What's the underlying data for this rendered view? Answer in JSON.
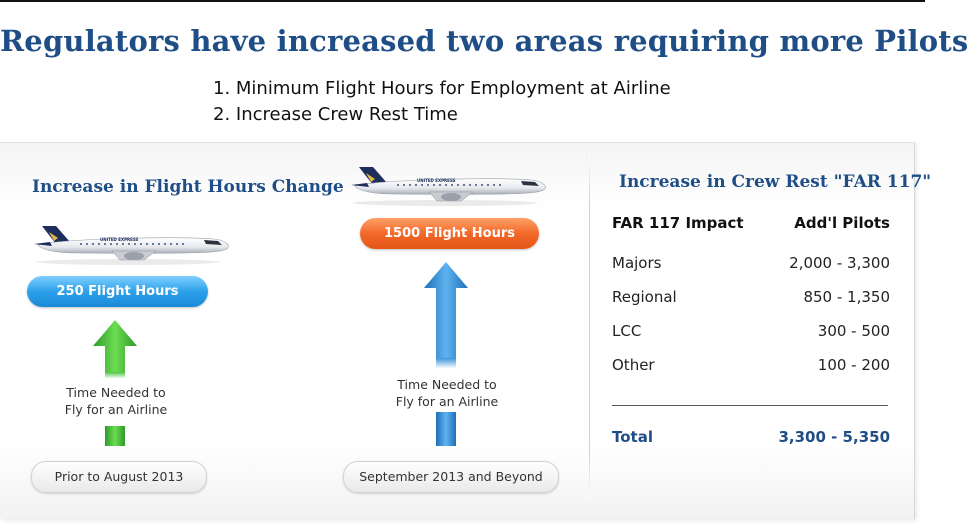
{
  "title": "Regulators have increased two areas requiring more Pilots",
  "reasons": [
    "1. Minimum Flight Hours for Employment at Airline",
    "2. Increase Crew Rest Time"
  ],
  "flight_hours": {
    "title": "Increase in Flight Hours Change",
    "before": {
      "hours_label": "250 Flight Hours",
      "note_lines": [
        "Time Needed to",
        "Fly for an Airline"
      ],
      "period": "Prior to August 2013",
      "color": "#2ea0ea",
      "arrow_color": "#44c23a"
    },
    "after": {
      "hours_label": "1500 Flight Hours",
      "note_lines": [
        "Time Needed to",
        "Fly for an Airline"
      ],
      "period": "September 2013 and Beyond",
      "color": "#f2692a",
      "arrow_color": "#2f8ad6"
    },
    "plane_icon": "airliner-icon",
    "plane_livery": "UNITED EXPRESS"
  },
  "crew_rest": {
    "title": "Increase in Crew Rest \"FAR 117\"",
    "headers": [
      "FAR 117 Impact",
      "Add'l Pilots"
    ],
    "rows": [
      {
        "label": "Majors",
        "value": "2,000 - 3,300"
      },
      {
        "label": "Regional",
        "value": "850 - 1,350"
      },
      {
        "label": "LCC",
        "value": "300 - 500"
      },
      {
        "label": "Other",
        "value": "100 - 200"
      }
    ],
    "total": {
      "label": "Total",
      "value": "3,300 - 5,350"
    }
  }
}
